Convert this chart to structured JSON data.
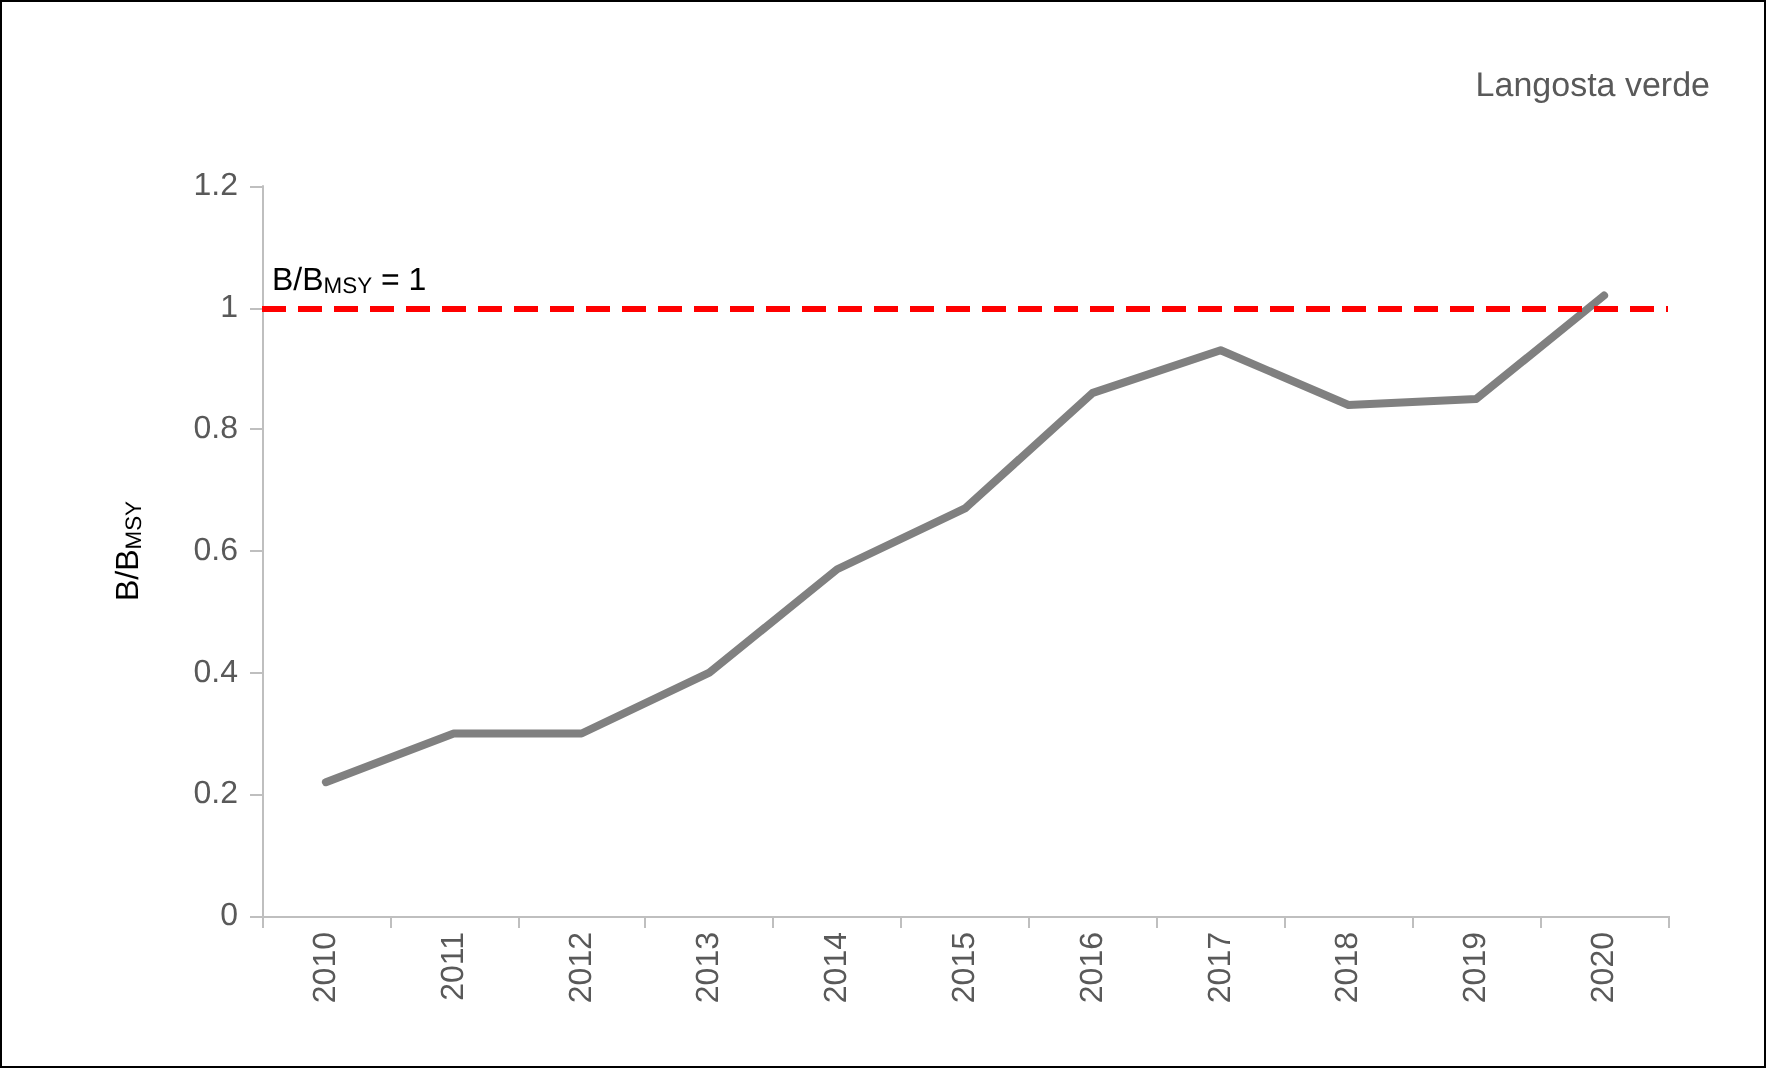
{
  "chart_data": {
    "type": "line",
    "title": "Langosta verde",
    "ylabel": "B/B$_{MSY}$",
    "categories": [
      "2010",
      "2011",
      "2012",
      "2013",
      "2014",
      "2015",
      "2016",
      "2017",
      "2018",
      "2019",
      "2020"
    ],
    "series": [
      {
        "color": "#808080",
        "values": [
          0.22,
          0.3,
          0.3,
          0.4,
          0.57,
          0.67,
          0.86,
          0.93,
          0.84,
          0.85,
          1.02
        ]
      }
    ],
    "ylim": [
      0,
      1.2
    ],
    "yticks": [
      0,
      0.2,
      0.4,
      0.6,
      0.8,
      1,
      1.2
    ],
    "grid": false,
    "marker": "none",
    "line_style": "solid",
    "ref_lines": [
      {
        "axis": "y",
        "value": 1,
        "label": "B/B$_{MSY}$ = 1",
        "color": "#ff0000",
        "line_style": "dashed"
      }
    ]
  }
}
